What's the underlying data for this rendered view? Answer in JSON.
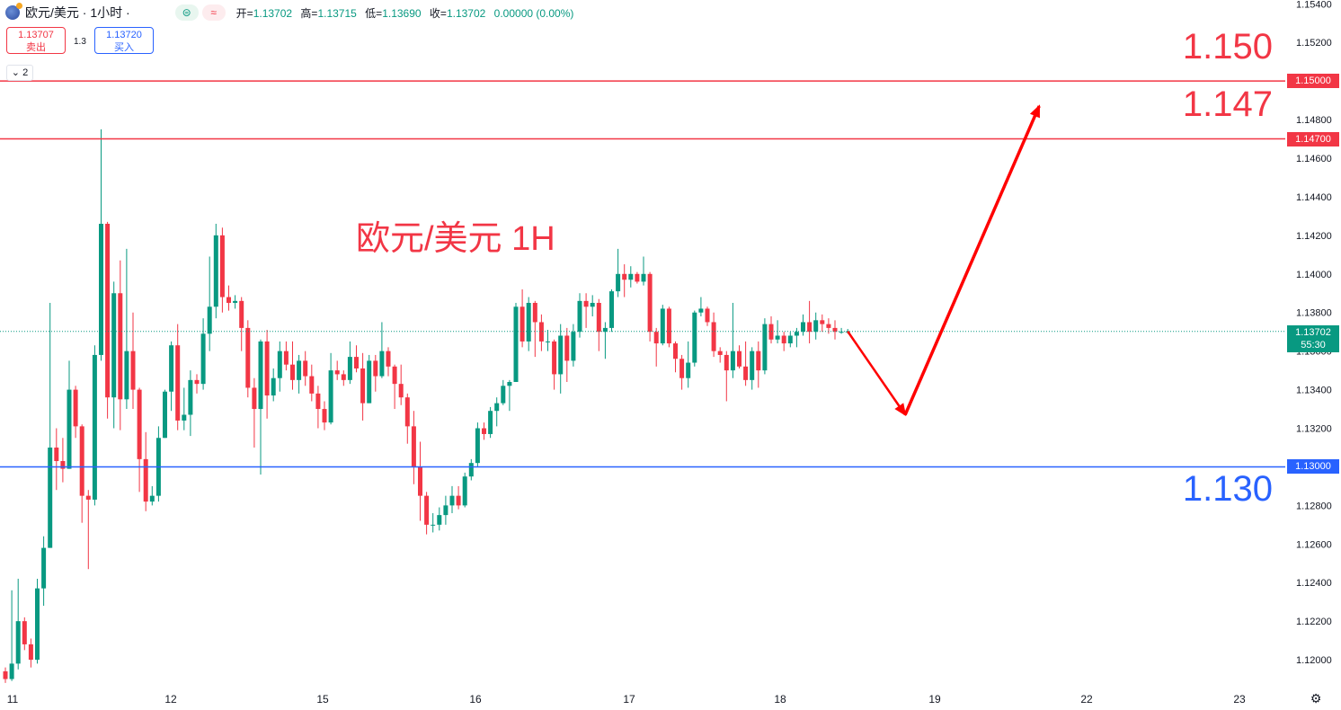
{
  "header": {
    "symbol": "欧元/美元 · 1小时 ·",
    "pill_a": "⊜",
    "pill_b": "≈",
    "open_label": "开=",
    "open": "1.13702",
    "high_label": "高=",
    "high": "1.13715",
    "low_label": "低=",
    "low": "1.13690",
    "close_label": "收=",
    "close": "1.13702",
    "change": "0.00000 (0.00%)"
  },
  "trade": {
    "sell_price": "1.13707",
    "sell_label": "卖出",
    "spread": "1.3",
    "buy_price": "1.13720",
    "buy_label": "买入"
  },
  "layers": "⌄ 2",
  "colors": {
    "up": "#089981",
    "down": "#f23645",
    "red_line": "#f23645",
    "blue_line": "#2962ff",
    "arrow": "#ff0000"
  },
  "chart_data": {
    "type": "candlestick",
    "title": "欧元/美元 1H",
    "ylim": [
      1.1187,
      1.1542
    ],
    "x_ticks": [
      "11",
      "12",
      "15",
      "16",
      "17",
      "18",
      "19",
      "22",
      "23"
    ],
    "y_ticks": [
      "1.15400",
      "1.15200",
      "1.14800",
      "1.14600",
      "1.14400",
      "1.14200",
      "1.14000",
      "1.13800",
      "1.13600",
      "1.13400",
      "1.13200",
      "1.12800",
      "1.12600",
      "1.12400",
      "1.12200",
      "1.12000"
    ],
    "last_price": "1.13702",
    "countdown": "55:30",
    "levels": [
      {
        "value": 1.15,
        "tag": "1.15000",
        "label": "1.150",
        "color": "red"
      },
      {
        "value": 1.147,
        "tag": "1.14700",
        "label": "1.147",
        "color": "red"
      },
      {
        "value": 1.13,
        "tag": "1.13000",
        "label": "1.130",
        "color": "blue"
      }
    ],
    "projection": [
      {
        "x": 0.0,
        "y": 1.13702
      },
      {
        "x": 9.0,
        "y": 1.1327
      },
      {
        "x": 30.0,
        "y": 1.1487
      }
    ],
    "candles": [
      [
        1.1194,
        1.1196,
        1.1188,
        1.119
      ],
      [
        1.119,
        1.1236,
        1.1189,
        1.1198
      ],
      [
        1.1198,
        1.1242,
        1.1195,
        1.122
      ],
      [
        1.122,
        1.1222,
        1.1205,
        1.1208
      ],
      [
        1.1208,
        1.1211,
        1.1196,
        1.12
      ],
      [
        1.12,
        1.1242,
        1.1198,
        1.1237
      ],
      [
        1.1237,
        1.1264,
        1.1228,
        1.1258
      ],
      [
        1.1258,
        1.1385,
        1.1258,
        1.131
      ],
      [
        1.131,
        1.132,
        1.1288,
        1.1303
      ],
      [
        1.1303,
        1.1315,
        1.1292,
        1.1299
      ],
      [
        1.1299,
        1.1355,
        1.1299,
        1.134
      ],
      [
        1.134,
        1.1342,
        1.1315,
        1.1321
      ],
      [
        1.1321,
        1.1322,
        1.1271,
        1.1285
      ],
      [
        1.1285,
        1.1288,
        1.1247,
        1.1283
      ],
      [
        1.1283,
        1.1363,
        1.128,
        1.1358
      ],
      [
        1.1358,
        1.1475,
        1.1355,
        1.1426
      ],
      [
        1.1426,
        1.1427,
        1.1325,
        1.1336
      ],
      [
        1.1336,
        1.1396,
        1.132,
        1.139
      ],
      [
        1.139,
        1.1407,
        1.1319,
        1.1335
      ],
      [
        1.1335,
        1.1413,
        1.133,
        1.136
      ],
      [
        1.136,
        1.138,
        1.133,
        1.134
      ],
      [
        1.134,
        1.1341,
        1.1287,
        1.1304
      ],
      [
        1.1304,
        1.1318,
        1.1277,
        1.1282
      ],
      [
        1.1282,
        1.129,
        1.128,
        1.1285
      ],
      [
        1.1285,
        1.1321,
        1.1282,
        1.1315
      ],
      [
        1.1315,
        1.134,
        1.1315,
        1.1339
      ],
      [
        1.1339,
        1.1365,
        1.1329,
        1.1363
      ],
      [
        1.1363,
        1.1374,
        1.1319,
        1.1324
      ],
      [
        1.1324,
        1.1341,
        1.1319,
        1.1327
      ],
      [
        1.1327,
        1.135,
        1.1316,
        1.1345
      ],
      [
        1.1345,
        1.1348,
        1.1338,
        1.1343
      ],
      [
        1.1343,
        1.1377,
        1.134,
        1.1369
      ],
      [
        1.1369,
        1.1409,
        1.136,
        1.1383
      ],
      [
        1.1383,
        1.1426,
        1.1377,
        1.142
      ],
      [
        1.142,
        1.1424,
        1.138,
        1.1388
      ],
      [
        1.1388,
        1.1394,
        1.1381,
        1.1385
      ],
      [
        1.1385,
        1.1389,
        1.1382,
        1.1386
      ],
      [
        1.1386,
        1.1388,
        1.136,
        1.1372
      ],
      [
        1.1372,
        1.1376,
        1.1336,
        1.1341
      ],
      [
        1.1341,
        1.1346,
        1.131,
        1.133
      ],
      [
        1.133,
        1.1366,
        1.1296,
        1.1365
      ],
      [
        1.1365,
        1.1371,
        1.1325,
        1.1337
      ],
      [
        1.1337,
        1.1351,
        1.1334,
        1.1346
      ],
      [
        1.1346,
        1.1365,
        1.1339,
        1.136
      ],
      [
        1.136,
        1.1365,
        1.135,
        1.1353
      ],
      [
        1.1353,
        1.1365,
        1.134,
        1.1345
      ],
      [
        1.1345,
        1.1358,
        1.1338,
        1.1355
      ],
      [
        1.1355,
        1.136,
        1.1342,
        1.1347
      ],
      [
        1.1347,
        1.1353,
        1.1334,
        1.1338
      ],
      [
        1.1338,
        1.1342,
        1.132,
        1.133
      ],
      [
        1.133,
        1.1334,
        1.1319,
        1.1323
      ],
      [
        1.1323,
        1.1359,
        1.1322,
        1.135
      ],
      [
        1.135,
        1.1355,
        1.1345,
        1.1348
      ],
      [
        1.1348,
        1.135,
        1.1342,
        1.1345
      ],
      [
        1.1345,
        1.1365,
        1.1343,
        1.1357
      ],
      [
        1.1357,
        1.1363,
        1.1349,
        1.1351
      ],
      [
        1.1351,
        1.1359,
        1.1324,
        1.1333
      ],
      [
        1.1333,
        1.1358,
        1.1333,
        1.1355
      ],
      [
        1.1355,
        1.1358,
        1.1339,
        1.1347
      ],
      [
        1.1347,
        1.1375,
        1.1346,
        1.136
      ],
      [
        1.136,
        1.1362,
        1.1347,
        1.1352
      ],
      [
        1.1352,
        1.1353,
        1.133,
        1.1343
      ],
      [
        1.1343,
        1.1353,
        1.1332,
        1.1336
      ],
      [
        1.1336,
        1.1338,
        1.1312,
        1.1321
      ],
      [
        1.1321,
        1.1329,
        1.1291,
        1.13
      ],
      [
        1.13,
        1.1313,
        1.1272,
        1.1285
      ],
      [
        1.1285,
        1.1287,
        1.1265,
        1.127
      ],
      [
        1.127,
        1.1276,
        1.1266,
        1.127
      ],
      [
        1.127,
        1.1279,
        1.1267,
        1.1275
      ],
      [
        1.1275,
        1.1285,
        1.127,
        1.128
      ],
      [
        1.128,
        1.129,
        1.1276,
        1.1285
      ],
      [
        1.1285,
        1.129,
        1.1278,
        1.128
      ],
      [
        1.128,
        1.1297,
        1.1279,
        1.1295
      ],
      [
        1.1295,
        1.1304,
        1.1293,
        1.1302
      ],
      [
        1.1302,
        1.1323,
        1.13,
        1.132
      ],
      [
        1.132,
        1.1323,
        1.1314,
        1.1317
      ],
      [
        1.1317,
        1.1331,
        1.1315,
        1.1329
      ],
      [
        1.1329,
        1.1336,
        1.1321,
        1.1333
      ],
      [
        1.1333,
        1.1345,
        1.1332,
        1.1342
      ],
      [
        1.1342,
        1.1345,
        1.1329,
        1.1344
      ],
      [
        1.1344,
        1.1385,
        1.1344,
        1.1383
      ],
      [
        1.1383,
        1.1392,
        1.1362,
        1.1365
      ],
      [
        1.1365,
        1.1388,
        1.136,
        1.1385
      ],
      [
        1.1385,
        1.1386,
        1.1357,
        1.1375
      ],
      [
        1.1375,
        1.1379,
        1.136,
        1.1365
      ],
      [
        1.1365,
        1.1371,
        1.136,
        1.1365
      ],
      [
        1.1365,
        1.1366,
        1.134,
        1.1348
      ],
      [
        1.1348,
        1.1374,
        1.1338,
        1.1368
      ],
      [
        1.1368,
        1.1372,
        1.1344,
        1.1355
      ],
      [
        1.1355,
        1.1374,
        1.1352,
        1.137
      ],
      [
        1.137,
        1.139,
        1.1367,
        1.1386
      ],
      [
        1.1386,
        1.139,
        1.1372,
        1.1383
      ],
      [
        1.1383,
        1.1389,
        1.1378,
        1.1385
      ],
      [
        1.1385,
        1.1387,
        1.136,
        1.137
      ],
      [
        1.137,
        1.1375,
        1.1356,
        1.1372
      ],
      [
        1.1372,
        1.1392,
        1.137,
        1.1391
      ],
      [
        1.1391,
        1.1413,
        1.1388,
        1.14
      ],
      [
        1.14,
        1.1405,
        1.1388,
        1.1397
      ],
      [
        1.1397,
        1.1404,
        1.1393,
        1.14
      ],
      [
        1.14,
        1.1401,
        1.1395,
        1.1396
      ],
      [
        1.1396,
        1.1409,
        1.1394,
        1.14
      ],
      [
        1.14,
        1.1401,
        1.1365,
        1.137
      ],
      [
        1.137,
        1.1372,
        1.1352,
        1.1364
      ],
      [
        1.1364,
        1.1384,
        1.1363,
        1.1382
      ],
      [
        1.1382,
        1.1383,
        1.1362,
        1.1364
      ],
      [
        1.1364,
        1.1365,
        1.1349,
        1.1356
      ],
      [
        1.1356,
        1.1358,
        1.134,
        1.1346
      ],
      [
        1.1346,
        1.1365,
        1.1341,
        1.1354
      ],
      [
        1.1354,
        1.1381,
        1.1352,
        1.138
      ],
      [
        1.138,
        1.1388,
        1.1378,
        1.1382
      ],
      [
        1.1382,
        1.1383,
        1.1373,
        1.1375
      ],
      [
        1.1375,
        1.138,
        1.1357,
        1.136
      ],
      [
        1.136,
        1.1362,
        1.1354,
        1.1358
      ],
      [
        1.1358,
        1.136,
        1.1334,
        1.135
      ],
      [
        1.135,
        1.1385,
        1.1346,
        1.136
      ],
      [
        1.136,
        1.1363,
        1.1351,
        1.1352
      ],
      [
        1.1352,
        1.1365,
        1.1342,
        1.1345
      ],
      [
        1.1345,
        1.1362,
        1.134,
        1.136
      ],
      [
        1.136,
        1.1365,
        1.1341,
        1.135
      ],
      [
        1.135,
        1.1377,
        1.1348,
        1.1374
      ],
      [
        1.1374,
        1.1378,
        1.1364,
        1.1366
      ],
      [
        1.1366,
        1.1376,
        1.1364,
        1.1368
      ],
      [
        1.1368,
        1.137,
        1.136,
        1.1364
      ],
      [
        1.1364,
        1.137,
        1.1362,
        1.1368
      ],
      [
        1.1368,
        1.1372,
        1.1362,
        1.137
      ],
      [
        1.137,
        1.1379,
        1.1368,
        1.1375
      ],
      [
        1.1375,
        1.1386,
        1.1364,
        1.137
      ],
      [
        1.137,
        1.138,
        1.1366,
        1.1376
      ],
      [
        1.1376,
        1.1379,
        1.137,
        1.1374
      ],
      [
        1.1374,
        1.1377,
        1.1369,
        1.1372
      ],
      [
        1.1372,
        1.1376,
        1.1366,
        1.137
      ],
      [
        1.137,
        1.1372,
        1.1369,
        1.137
      ],
      [
        1.137,
        1.13715,
        1.1369,
        1.13702
      ]
    ]
  }
}
